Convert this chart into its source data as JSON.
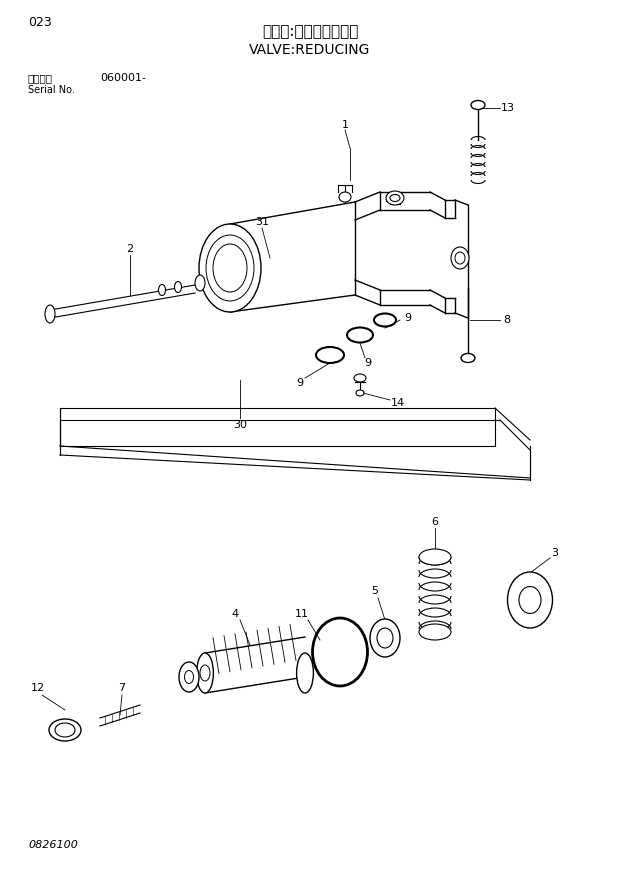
{
  "title_jp": "バルブ:レデューシング",
  "title_en": "VALVE:REDUCING",
  "diagram_number": "023",
  "serial_label": "適用号機",
  "serial_en": "Serial No.",
  "serial_value": "060001-",
  "part_number": "0826100",
  "bg_color": "#ffffff",
  "line_color": "#000000",
  "fig_width": 6.2,
  "fig_height": 8.76,
  "dpi": 100
}
